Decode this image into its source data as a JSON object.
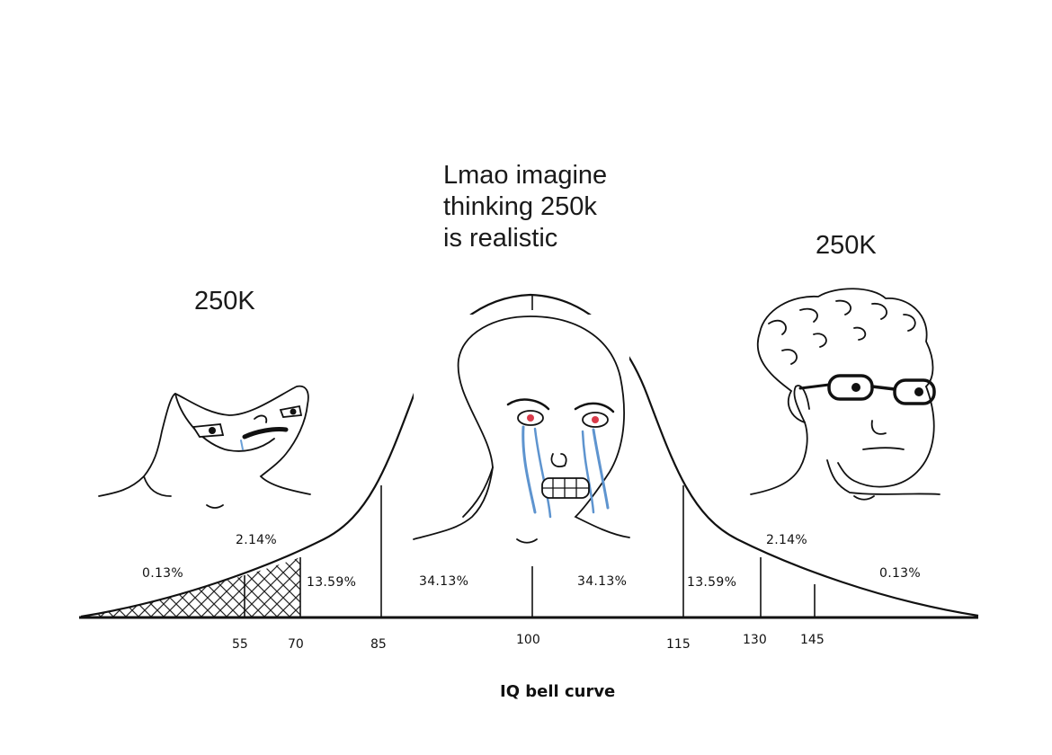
{
  "captions": {
    "left": "250K",
    "middle": [
      "Lmao imagine",
      "thinking 250k",
      "is realistic"
    ],
    "right": "250K"
  },
  "curve": {
    "percentages": [
      "0.13%",
      "2.14%",
      "13.59%",
      "34.13%",
      "34.13%",
      "13.59%",
      "2.14%",
      "0.13%"
    ],
    "ticks": [
      "55",
      "70",
      "85",
      "100",
      "115",
      "130",
      "145"
    ],
    "axis_title": "IQ bell curve"
  }
}
